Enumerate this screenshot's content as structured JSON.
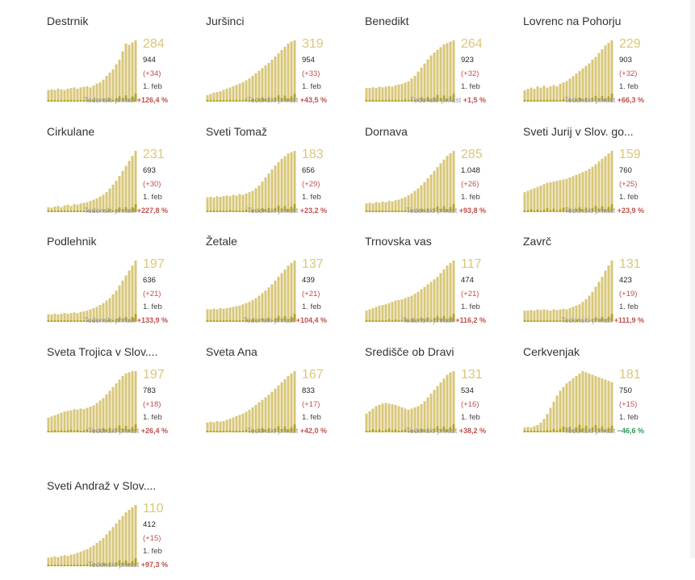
{
  "colors": {
    "bar": "#d8c77a",
    "bar_dark": "#b5a321",
    "big_number": "#d8c878",
    "positive": "#c0504d",
    "negative": "#2e9a5a"
  },
  "growth_label": "Tedenski prirast",
  "chart_data": [
    {
      "type": "bar",
      "title": "Destrnik",
      "big": "284",
      "total": "944",
      "delta": "(+34)",
      "date": "1. feb",
      "growth": "+126,4 %",
      "neg": false,
      "values": [
        18,
        19,
        18,
        20,
        19,
        18,
        20,
        21,
        22,
        20,
        22,
        23,
        24,
        22,
        25,
        28,
        30,
        34,
        40,
        45,
        50,
        58,
        65,
        78,
        90,
        88,
        92,
        95
      ]
    },
    {
      "type": "bar",
      "title": "Juršinci",
      "big": "319",
      "total": "954",
      "delta": "(+33)",
      "date": "1. feb",
      "growth": "+43,5 %",
      "neg": false,
      "values": [
        10,
        12,
        14,
        15,
        16,
        18,
        20,
        22,
        24,
        26,
        28,
        30,
        33,
        36,
        40,
        44,
        48,
        52,
        56,
        60,
        65,
        70,
        75,
        80,
        85,
        90,
        93,
        95
      ]
    },
    {
      "type": "bar",
      "title": "Benedikt",
      "big": "264",
      "total": "923",
      "delta": "(+32)",
      "date": "1. feb",
      "growth": "+1,5 %",
      "neg": false,
      "values": [
        20,
        20,
        21,
        20,
        22,
        21,
        22,
        23,
        22,
        24,
        25,
        26,
        28,
        30,
        34,
        38,
        44,
        50,
        56,
        62,
        68,
        72,
        76,
        80,
        84,
        86,
        88,
        90
      ]
    },
    {
      "type": "bar",
      "title": "Lovrenc na Pohorju",
      "big": "229",
      "total": "903",
      "delta": "(+32)",
      "date": "1. feb",
      "growth": "+66,3 %",
      "neg": false,
      "values": [
        18,
        20,
        22,
        20,
        24,
        22,
        25,
        22,
        24,
        26,
        24,
        28,
        30,
        32,
        36,
        40,
        44,
        48,
        52,
        56,
        60,
        66,
        70,
        76,
        82,
        88,
        92,
        96
      ]
    },
    {
      "type": "bar",
      "title": "Cirkulane",
      "big": "231",
      "total": "693",
      "delta": "(+30)",
      "date": "1. feb",
      "growth": "+227,8 %",
      "neg": false,
      "values": [
        8,
        7,
        9,
        10,
        8,
        11,
        12,
        10,
        13,
        12,
        14,
        15,
        16,
        18,
        20,
        22,
        25,
        28,
        32,
        38,
        44,
        50,
        58,
        66,
        74,
        82,
        90,
        98
      ]
    },
    {
      "type": "bar",
      "title": "Sveti Tomaž",
      "big": "183",
      "total": "656",
      "delta": "(+29)",
      "date": "1. feb",
      "growth": "+23,2 %",
      "neg": false,
      "values": [
        22,
        23,
        22,
        24,
        23,
        24,
        25,
        24,
        26,
        25,
        27,
        26,
        28,
        30,
        32,
        36,
        40,
        46,
        52,
        58,
        64,
        70,
        75,
        80,
        84,
        88,
        90,
        92
      ]
    },
    {
      "type": "bar",
      "title": "Dornava",
      "big": "285",
      "total": "1.048",
      "delta": "(+26)",
      "date": "1. feb",
      "growth": "+93,8 %",
      "neg": false,
      "values": [
        14,
        15,
        14,
        16,
        15,
        17,
        16,
        18,
        17,
        19,
        20,
        22,
        24,
        27,
        30,
        34,
        38,
        43,
        48,
        54,
        60,
        66,
        72,
        78,
        84,
        90,
        94,
        98
      ]
    },
    {
      "type": "bar",
      "title": "Sveti Jurij v Slov. go...",
      "big": "159",
      "total": "760",
      "delta": "(+25)",
      "date": "1. feb",
      "growth": "+23,9 %",
      "neg": false,
      "values": [
        30,
        32,
        34,
        36,
        38,
        40,
        42,
        44,
        45,
        46,
        47,
        48,
        49,
        50,
        52,
        54,
        56,
        58,
        60,
        62,
        65,
        68,
        72,
        76,
        80,
        84,
        88,
        92
      ]
    },
    {
      "type": "bar",
      "title": "Podlehnik",
      "big": "197",
      "total": "636",
      "delta": "(+21)",
      "date": "1. feb",
      "growth": "+133,9 %",
      "neg": false,
      "values": [
        12,
        12,
        13,
        12,
        13,
        14,
        13,
        14,
        15,
        14,
        16,
        17,
        18,
        20,
        22,
        24,
        27,
        30,
        34,
        38,
        44,
        50,
        58,
        66,
        74,
        82,
        90,
        98
      ]
    },
    {
      "type": "bar",
      "title": "Žetale",
      "big": "137",
      "total": "439",
      "delta": "(+21)",
      "date": "1. feb",
      "growth": "+104,4 %",
      "neg": false,
      "values": [
        20,
        20,
        21,
        20,
        22,
        21,
        22,
        23,
        24,
        25,
        26,
        28,
        30,
        32,
        35,
        38,
        42,
        46,
        50,
        55,
        60,
        66,
        72,
        78,
        84,
        90,
        94,
        98
      ]
    },
    {
      "type": "bar",
      "title": "Trnovska vas",
      "big": "117",
      "total": "474",
      "delta": "(+21)",
      "date": "1. feb",
      "growth": "+116,2 %",
      "neg": false,
      "values": [
        18,
        20,
        22,
        24,
        26,
        27,
        28,
        30,
        32,
        34,
        35,
        36,
        38,
        40,
        42,
        45,
        48,
        52,
        56,
        60,
        64,
        68,
        72,
        78,
        84,
        90,
        94,
        98
      ]
    },
    {
      "type": "bar",
      "title": "Zavrč",
      "big": "131",
      "total": "423",
      "delta": "(+19)",
      "date": "1. feb",
      "growth": "+111,9 %",
      "neg": false,
      "values": [
        18,
        18,
        19,
        18,
        20,
        19,
        20,
        19,
        18,
        20,
        19,
        20,
        21,
        20,
        22,
        24,
        26,
        28,
        32,
        36,
        42,
        48,
        56,
        64,
        72,
        82,
        90,
        98
      ]
    },
    {
      "type": "bar",
      "title": "Sveta Trojica v Slov....",
      "big": "197",
      "total": "783",
      "delta": "(+18)",
      "date": "1. feb",
      "growth": "+26,4 %",
      "neg": false,
      "values": [
        24,
        26,
        28,
        30,
        32,
        34,
        35,
        36,
        38,
        37,
        39,
        38,
        40,
        42,
        44,
        48,
        52,
        56,
        62,
        68,
        74,
        80,
        86,
        92,
        96,
        98,
        100,
        100
      ]
    },
    {
      "type": "bar",
      "title": "Sveta Ana",
      "big": "167",
      "total": "833",
      "delta": "(+17)",
      "date": "1. feb",
      "growth": "+42,0 %",
      "neg": false,
      "values": [
        16,
        17,
        16,
        18,
        17,
        18,
        20,
        22,
        24,
        26,
        28,
        30,
        33,
        36,
        40,
        44,
        48,
        52,
        56,
        60,
        65,
        70,
        75,
        80,
        85,
        90,
        94,
        98
      ]
    },
    {
      "type": "bar",
      "title": "Središče ob Dravi",
      "big": "131",
      "total": "534",
      "delta": "(+16)",
      "date": "1. feb",
      "growth": "+38,2 %",
      "neg": false,
      "values": [
        30,
        34,
        38,
        42,
        44,
        46,
        47,
        46,
        45,
        44,
        42,
        40,
        38,
        36,
        38,
        40,
        42,
        45,
        50,
        56,
        62,
        68,
        74,
        80,
        86,
        92,
        96,
        98
      ]
    },
    {
      "type": "bar",
      "title": "Cerkvenjak",
      "big": "181",
      "total": "750",
      "delta": "(+15)",
      "date": "1. feb",
      "growth": "−46,6 %",
      "neg": true,
      "values": [
        8,
        9,
        8,
        10,
        12,
        16,
        22,
        30,
        40,
        50,
        60,
        68,
        74,
        80,
        84,
        88,
        92,
        96,
        100,
        98,
        96,
        94,
        92,
        90,
        88,
        86,
        84,
        82
      ]
    },
    {
      "type": "bar",
      "title": "Sveti Andraž v Slov....",
      "big": "110",
      "total": "412",
      "delta": "(+15)",
      "date": "1. feb",
      "growth": "+97,3 %",
      "neg": false,
      "values": [
        14,
        15,
        16,
        15,
        17,
        18,
        17,
        19,
        20,
        22,
        24,
        26,
        28,
        31,
        34,
        38,
        42,
        46,
        52,
        58,
        64,
        70,
        76,
        82,
        88,
        92,
        96,
        100
      ]
    }
  ]
}
